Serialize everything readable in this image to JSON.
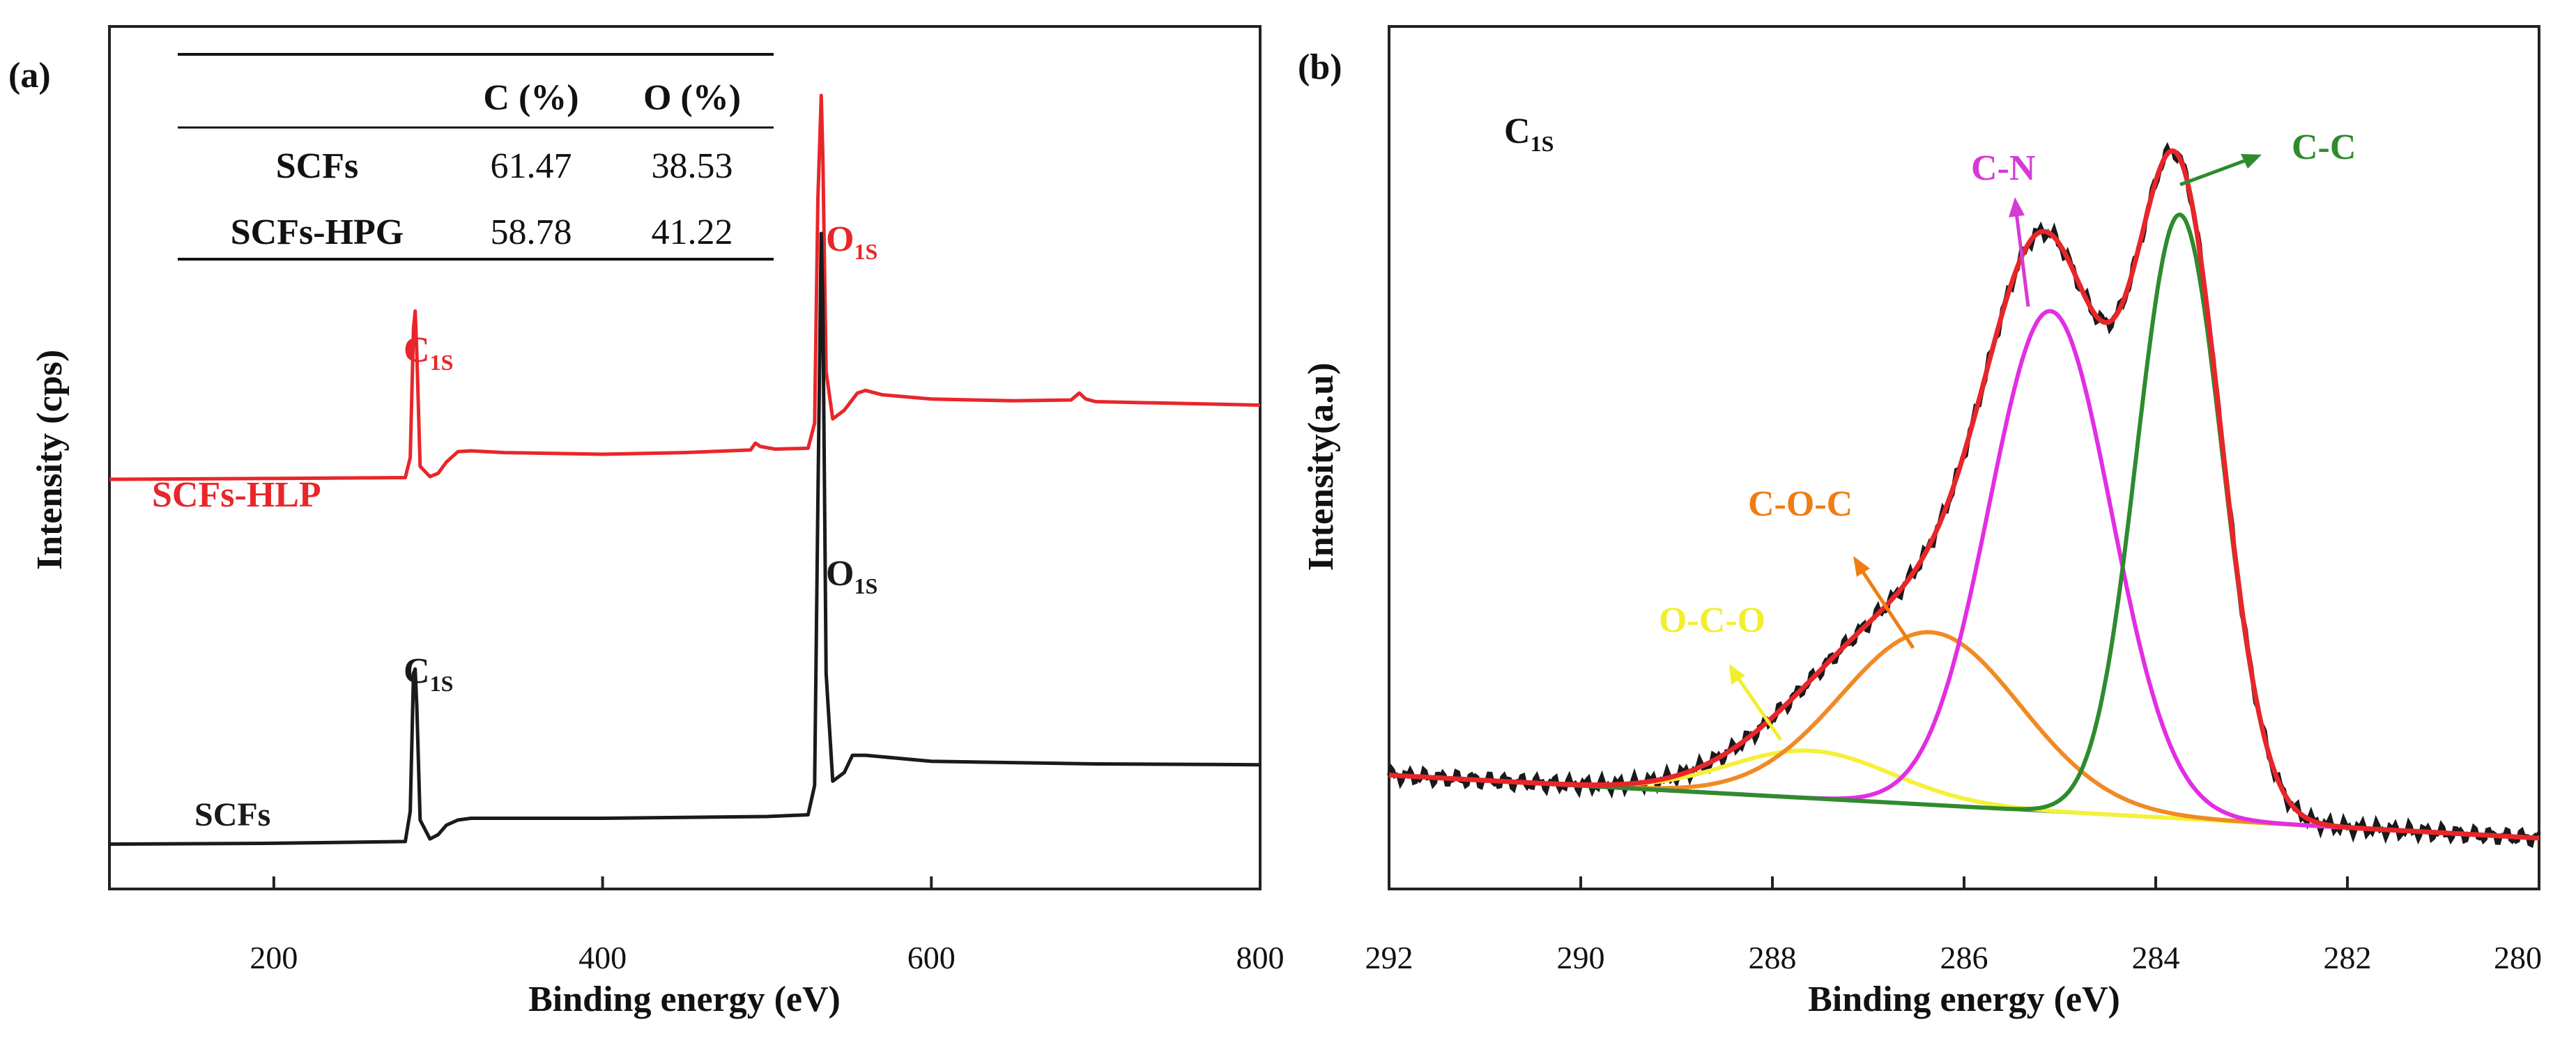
{
  "chart_data": [
    {
      "type": "line",
      "panel_label": "(a)",
      "xlabel": "Binding energy (eV)",
      "ylabel": "Intensity (cps)",
      "xlim": [
        100,
        800
      ],
      "ylim": [
        0,
        100
      ],
      "x_ticks": [
        200,
        400,
        600,
        800
      ],
      "x_tick_labels": [
        "200",
        "400",
        "600",
        "800"
      ],
      "grid": false,
      "series": [
        {
          "name": "SCFs-HLP",
          "color": "#e8262a",
          "points": [
            [
              100,
              47.5
            ],
            [
              200,
              47.6
            ],
            [
              280,
              47.7
            ],
            [
              283,
              50
            ],
            [
              285,
              65
            ],
            [
              286,
              67
            ],
            [
              287,
              62
            ],
            [
              289,
              49
            ],
            [
              295,
              47.8
            ],
            [
              300,
              48.2
            ],
            [
              305,
              49.5
            ],
            [
              312,
              50.7
            ],
            [
              320,
              50.8
            ],
            [
              340,
              50.6
            ],
            [
              400,
              50.4
            ],
            [
              450,
              50.6
            ],
            [
              490,
              50.9
            ],
            [
              493,
              51.7
            ],
            [
              496,
              51.3
            ],
            [
              505,
              51.0
            ],
            [
              525,
              51.1
            ],
            [
              529,
              54
            ],
            [
              531,
              80
            ],
            [
              533,
              92
            ],
            [
              534,
              85
            ],
            [
              536,
              60
            ],
            [
              540,
              54.5
            ],
            [
              547,
              55.5
            ],
            [
              555,
              57.5
            ],
            [
              560,
              57.8
            ],
            [
              570,
              57.3
            ],
            [
              600,
              56.8
            ],
            [
              650,
              56.6
            ],
            [
              685,
              56.7
            ],
            [
              690,
              57.5
            ],
            [
              694,
              56.8
            ],
            [
              700,
              56.5
            ],
            [
              800,
              56.1
            ]
          ]
        },
        {
          "name": "SCFs",
          "color": "#1a1a1a",
          "points": [
            [
              100,
              5.2
            ],
            [
              200,
              5.3
            ],
            [
              280,
              5.5
            ],
            [
              283,
              9
            ],
            [
              285,
              25
            ],
            [
              286,
              25.5
            ],
            [
              287,
              21
            ],
            [
              289,
              8
            ],
            [
              295,
              5.8
            ],
            [
              300,
              6.3
            ],
            [
              305,
              7.4
            ],
            [
              312,
              8.0
            ],
            [
              320,
              8.2
            ],
            [
              400,
              8.2
            ],
            [
              500,
              8.4
            ],
            [
              525,
              8.6
            ],
            [
              529,
              12
            ],
            [
              531,
              45
            ],
            [
              533,
              76
            ],
            [
              534,
              68
            ],
            [
              536,
              25
            ],
            [
              540,
              12.5
            ],
            [
              547,
              13.5
            ],
            [
              552,
              15.5
            ],
            [
              560,
              15.5
            ],
            [
              600,
              14.8
            ],
            [
              700,
              14.5
            ],
            [
              800,
              14.4
            ]
          ]
        }
      ],
      "series_labels": [
        "SCFs-HLP",
        "SCFs"
      ],
      "annotations": [
        {
          "text": "C",
          "sub": "1S",
          "near": "SCFs-HLP C1s peak",
          "color": "#e8262a"
        },
        {
          "text": "O",
          "sub": "1S",
          "near": "SCFs-HLP O1s peak",
          "color": "#e8262a"
        },
        {
          "text": "C",
          "sub": "1S",
          "near": "SCFs C1s peak",
          "color": "#1a1a1a"
        },
        {
          "text": "O",
          "sub": "1S",
          "near": "SCFs O1s peak",
          "color": "#1a1a1a"
        }
      ],
      "inset_table": {
        "headers": [
          "",
          "C (%)",
          "O (%)"
        ],
        "rows": [
          [
            "SCFs",
            "61.47",
            "38.53"
          ],
          [
            "SCFs-HPG",
            "58.78",
            "41.22"
          ]
        ]
      }
    },
    {
      "type": "line",
      "panel_label": "(b)",
      "title": "C1S",
      "title_main": "C",
      "title_sub": "1S",
      "xlabel": "Binding energy (eV)",
      "ylabel": "Intensity(a.u)",
      "xlim": [
        292,
        280
      ],
      "ylim": [
        0,
        100
      ],
      "x_ticks": [
        292,
        290,
        288,
        286,
        284,
        282,
        280
      ],
      "x_tick_labels": [
        "292",
        "290",
        "288",
        "286",
        "284",
        "282",
        "280"
      ],
      "grid": false,
      "baseline": {
        "start": 13.2,
        "end": 5.9,
        "color": "#2e7d32"
      },
      "components": [
        {
          "name": "C-C",
          "center": 283.75,
          "fwhm": 1.05,
          "height": 70,
          "color": "#2e8b2e",
          "label_color": "#2e8b2e"
        },
        {
          "name": "C-N",
          "center": 285.1,
          "fwhm": 1.5,
          "height": 58,
          "color": "#e22ee2",
          "label_color": "#d63ad6"
        },
        {
          "name": "C-O-C",
          "center": 286.35,
          "fwhm": 2.2,
          "height": 20,
          "color": "#f08a24",
          "label_color": "#ef7d12"
        },
        {
          "name": "O-C-O",
          "center": 287.6,
          "fwhm": 2.0,
          "height": 5.5,
          "color": "#f5f03a",
          "label_color": "#f2ee2e"
        }
      ],
      "series": [
        {
          "name": "Raw",
          "color": "#1a1a1a"
        },
        {
          "name": "Fit envelope",
          "color": "#e8262a"
        }
      ]
    }
  ]
}
